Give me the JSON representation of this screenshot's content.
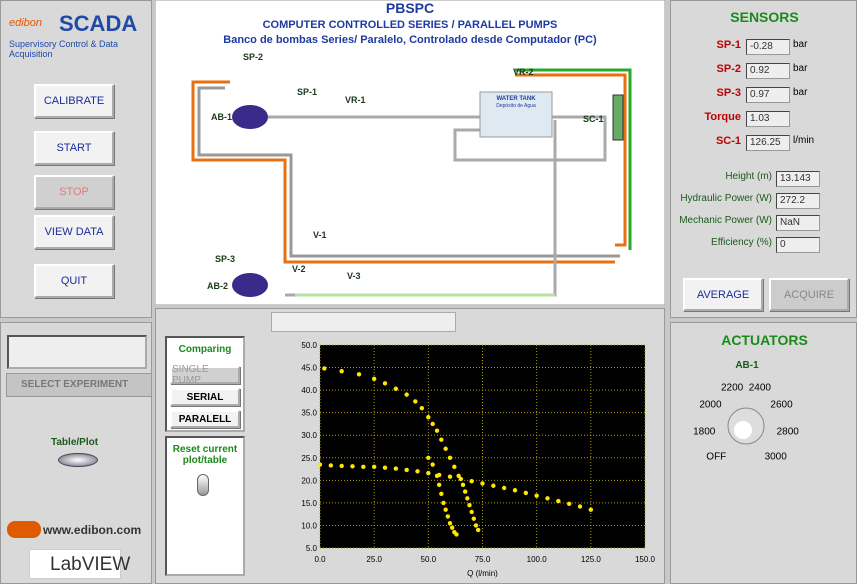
{
  "brand": {
    "logo": "edibon",
    "product": "SCADA",
    "tagline": "Supervisory Control & Data Acquisition"
  },
  "buttons": [
    "CALIBRATE",
    "START",
    "STOP",
    "VIEW DATA",
    "QUIT"
  ],
  "header": {
    "title": "PBSPC",
    "subtitle": "COMPUTER CONTROLLED SERIES / PARALLEL PUMPS",
    "subtitle_es": "Banco de bombas Series/ Paralelo, Controlado desde Computador (PC)"
  },
  "diagram": {
    "labels": [
      "SP-2",
      "SP-1",
      "VR-1",
      "AB-1",
      "VR-2",
      "SC-1",
      "V-1",
      "SP-3",
      "V-2",
      "V-3",
      "AB-2"
    ],
    "tank": "WATER TANK",
    "tank_es": "Depósito de Agua"
  },
  "sensors": {
    "title": "SENSORS",
    "rows": [
      {
        "label": "SP-1",
        "value": "-0.28",
        "unit": "bar"
      },
      {
        "label": "SP-2",
        "value": "0.92",
        "unit": "bar"
      },
      {
        "label": "SP-3",
        "value": "0.97",
        "unit": "bar"
      },
      {
        "label": "Torque",
        "value": "1.03",
        "unit": ""
      },
      {
        "label": "SC-1",
        "value": "126.25",
        "unit": "l/min"
      }
    ],
    "computed": [
      {
        "label": "Height (m)",
        "value": "13.143"
      },
      {
        "label": "Hydraulic Power (W)",
        "value": "272.2"
      },
      {
        "label": "Mechanic Power (W)",
        "value": "NaN"
      },
      {
        "label": "Efficiency (%)",
        "value": "0"
      }
    ],
    "buttons": [
      "AVERAGE",
      "ACQUIRE"
    ]
  },
  "actuators": {
    "title": "ACTUATORS",
    "name": "AB-1",
    "dial": [
      "OFF",
      "1800",
      "2000",
      "2200",
      "2400",
      "2600",
      "2800",
      "3000"
    ]
  },
  "left": {
    "select": "SELECT EXPERIMENT",
    "toggle": "Table/Plot",
    "website": "www.edibon.com",
    "labview": "LabVIEW"
  },
  "comparing": {
    "title": "Comparing",
    "options": [
      "SINGLE PUMP",
      "SERIAL",
      "PARALELL"
    ],
    "reset": "Reset current plot/table"
  },
  "plot": {
    "xlabel": "Q (l/min)",
    "xlim": [
      0,
      150
    ],
    "ylim": [
      5,
      50
    ],
    "xticks": [
      {
        "value": 0,
        "label": "0.0"
      },
      {
        "value": 25,
        "label": "25.0"
      },
      {
        "value": 50,
        "label": "50.0"
      },
      {
        "value": 75,
        "label": "75.0"
      },
      {
        "value": 100,
        "label": "100.0"
      },
      {
        "value": 125,
        "label": "125.0"
      },
      {
        "value": 150,
        "label": "150.0"
      }
    ],
    "yticks": [
      {
        "value": 5,
        "label": "5.0"
      },
      {
        "value": 10,
        "label": "10.0"
      },
      {
        "value": 15,
        "label": "15.0"
      },
      {
        "value": 20,
        "label": "20.0"
      },
      {
        "value": 25,
        "label": "25.0"
      },
      {
        "value": 30,
        "label": "30.0"
      },
      {
        "value": 35,
        "label": "35.0"
      },
      {
        "value": 40,
        "label": "40.0"
      },
      {
        "value": 45,
        "label": "45.0"
      },
      {
        "value": 50,
        "label": "50.0"
      }
    ],
    "color": "#ffe600",
    "x": [
      2,
      10,
      18,
      25,
      30,
      35,
      40,
      44,
      47,
      50,
      52,
      54,
      56,
      58,
      60,
      62,
      64,
      66,
      67,
      68,
      69,
      70,
      71,
      72,
      73,
      0,
      5,
      10,
      15,
      20,
      25,
      30,
      35,
      40,
      45,
      50,
      55,
      60,
      65,
      70,
      75,
      80,
      85,
      90,
      95,
      100,
      105,
      110,
      115,
      120,
      125,
      50,
      52,
      54,
      55,
      56,
      57,
      58,
      59,
      60,
      61,
      62,
      63
    ],
    "y": [
      44.8,
      44.2,
      43.5,
      42.5,
      41.5,
      40.3,
      39,
      37.5,
      36,
      34,
      32.5,
      31,
      29,
      27,
      25,
      23,
      21,
      19,
      17.5,
      16,
      14.5,
      13,
      11.5,
      10,
      9,
      23.5,
      23.3,
      23.2,
      23.1,
      23,
      23,
      22.8,
      22.6,
      22.3,
      22,
      21.6,
      21.2,
      20.8,
      20.3,
      19.8,
      19.3,
      18.8,
      18.3,
      17.8,
      17.2,
      16.6,
      16,
      15.4,
      14.8,
      14.2,
      13.5,
      25,
      23.5,
      21,
      19,
      17,
      15,
      13.5,
      12,
      10.5,
      9.5,
      8.5,
      8
    ]
  }
}
